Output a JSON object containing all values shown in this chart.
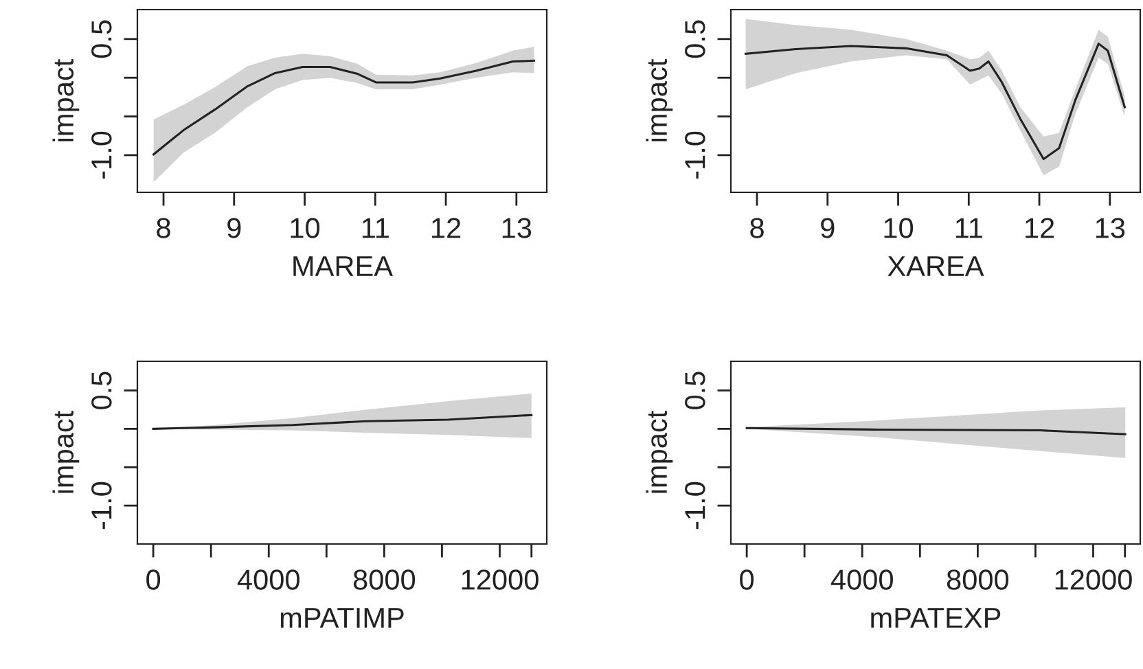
{
  "chart_data": [
    {
      "type": "line",
      "xlabel": "MAREA",
      "ylabel": "impact",
      "xlim": [
        7.63,
        13.43
      ],
      "ylim": [
        -1.48,
        0.88
      ],
      "xticks": [
        8,
        9,
        10,
        11,
        12,
        13
      ],
      "yticks": [
        {
          "value": -1.0,
          "label": "-1.0"
        },
        {
          "value": -0.5,
          "label": null
        },
        {
          "value": 0.0,
          "label": null
        },
        {
          "value": 0.5,
          "label": "0.5"
        }
      ],
      "grid": false,
      "legend": false,
      "series": [
        {
          "color": "#222222",
          "x": [
            7.86,
            8.28,
            8.73,
            9.19,
            9.58,
            9.97,
            10.36,
            10.75,
            11.01,
            11.53,
            11.92,
            12.43,
            12.95,
            13.25
          ],
          "values": [
            -0.99,
            -0.68,
            -0.41,
            -0.11,
            0.06,
            0.14,
            0.14,
            0.05,
            -0.06,
            -0.06,
            -0.01,
            0.09,
            0.21,
            0.22
          ],
          "upper": [
            -0.54,
            -0.35,
            -0.12,
            0.15,
            0.26,
            0.31,
            0.28,
            0.18,
            0.04,
            0.03,
            0.07,
            0.19,
            0.35,
            0.4
          ],
          "lower": [
            -1.35,
            -0.97,
            -0.71,
            -0.38,
            -0.15,
            -0.03,
            0.0,
            -0.07,
            -0.15,
            -0.15,
            -0.09,
            0.0,
            0.07,
            0.06
          ]
        }
      ]
    },
    {
      "type": "line",
      "xlabel": "XAREA",
      "ylabel": "impact",
      "xlim": [
        7.63,
        13.43
      ],
      "ylim": [
        -1.48,
        0.88
      ],
      "xticks": [
        8,
        9,
        10,
        11,
        12,
        13
      ],
      "yticks": [
        {
          "value": -1.0,
          "label": "-1.0"
        },
        {
          "value": -0.5,
          "label": null
        },
        {
          "value": 0.0,
          "label": null
        },
        {
          "value": 0.5,
          "label": "0.5"
        }
      ],
      "grid": false,
      "legend": false,
      "series": [
        {
          "color": "#222222",
          "x": [
            7.84,
            8.55,
            9.33,
            10.11,
            10.69,
            11.02,
            11.15,
            11.28,
            11.47,
            11.73,
            12.06,
            12.28,
            12.51,
            12.84,
            12.97,
            13.21
          ],
          "values": [
            0.31,
            0.37,
            0.41,
            0.38,
            0.29,
            0.09,
            0.12,
            0.21,
            -0.06,
            -0.53,
            -1.05,
            -0.91,
            -0.29,
            0.44,
            0.35,
            -0.38
          ],
          "upper": [
            0.76,
            0.68,
            0.62,
            0.5,
            0.35,
            0.24,
            0.26,
            0.35,
            0.09,
            -0.38,
            -0.76,
            -0.71,
            -0.15,
            0.62,
            0.53,
            -0.24
          ],
          "lower": [
            -0.15,
            0.06,
            0.21,
            0.29,
            0.24,
            -0.09,
            -0.03,
            0.03,
            -0.21,
            -0.68,
            -1.26,
            -1.15,
            -0.47,
            0.26,
            0.18,
            -0.5
          ]
        }
      ]
    },
    {
      "type": "line",
      "xlabel": "mPATIMP",
      "ylabel": "impact",
      "xlim": [
        -550,
        13630
      ],
      "ylim": [
        -1.5,
        0.88
      ],
      "xticks": [
        0,
        {
          "value": 2000,
          "label": null
        },
        4000,
        {
          "value": 6000,
          "label": null
        },
        8000,
        {
          "value": 10000,
          "label": null
        },
        12000,
        {
          "value": 13100,
          "label": null
        }
      ],
      "yticks": [
        {
          "value": -1.0,
          "label": "-1.0"
        },
        {
          "value": -0.5,
          "label": null
        },
        {
          "value": 0.0,
          "label": null
        },
        {
          "value": 0.5,
          "label": "0.5"
        }
      ],
      "grid": false,
      "legend": false,
      "series": [
        {
          "color": "#222222",
          "x": [
            0,
            2140,
            4830,
            7370,
            10220,
            13100
          ],
          "values": [
            0.0,
            0.02,
            0.05,
            0.1,
            0.12,
            0.18
          ],
          "upper": [
            0.0,
            0.05,
            0.14,
            0.25,
            0.36,
            0.46
          ],
          "lower": [
            0.0,
            -0.01,
            -0.02,
            -0.05,
            -0.08,
            -0.12
          ]
        }
      ]
    },
    {
      "type": "line",
      "xlabel": "mPATEXP",
      "ylabel": "impact",
      "xlim": [
        -550,
        13630
      ],
      "ylim": [
        -1.5,
        0.88
      ],
      "xticks": [
        0,
        {
          "value": 2000,
          "label": null
        },
        4000,
        {
          "value": 6000,
          "label": null
        },
        8000,
        {
          "value": 10000,
          "label": null
        },
        12000,
        {
          "value": 13100,
          "label": null
        }
      ],
      "yticks": [
        {
          "value": -1.0,
          "label": "-1.0"
        },
        {
          "value": -0.5,
          "label": null
        },
        {
          "value": 0.0,
          "label": null
        },
        {
          "value": 0.5,
          "label": "0.5"
        }
      ],
      "grid": false,
      "legend": false,
      "series": [
        {
          "color": "#222222",
          "x": [
            0,
            4550,
            10170,
            13110
          ],
          "values": [
            0.01,
            -0.01,
            -0.02,
            -0.07
          ],
          "upper": [
            0.02,
            0.11,
            0.24,
            0.28
          ],
          "lower": [
            0.0,
            -0.11,
            -0.29,
            -0.38
          ]
        }
      ]
    }
  ]
}
